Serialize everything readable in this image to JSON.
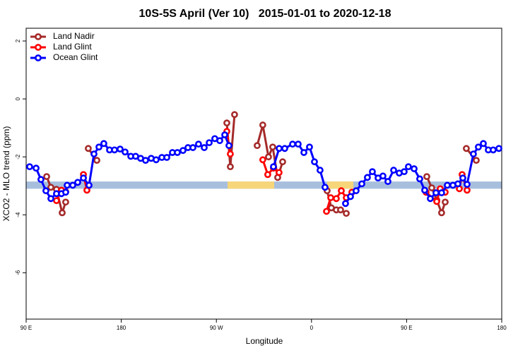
{
  "chart_data": {
    "type": "line",
    "title": "10S-5S April (Ver 10)   2015-01-01 to 2020-12-18",
    "x_label": "Longitude",
    "y_label": "XCO2 - MLO trend (ppm)",
    "xlim": [
      90,
      540
    ],
    "xticks": [
      {
        "value": 90,
        "label": "90 E"
      },
      180,
      {
        "value": 270,
        "label": "90 W"
      },
      {
        "value": 360,
        "label": "0"
      },
      {
        "value": 450,
        "label": "90 E"
      },
      {
        "value": 540,
        "label": "180"
      }
    ],
    "ylim": [
      -7.6,
      2.44
    ],
    "yticks": [
      2,
      0,
      -2,
      -4,
      -6
    ],
    "legend": "top-left",
    "band": {
      "ylim": [
        -3.1,
        -2.85
      ],
      "color": "#a7bfdd",
      "highlight_color": "#f7d67a",
      "highlight_x": [
        [
          280.6,
          324.7
        ],
        [
          374.8,
          399.6
        ]
      ]
    },
    "series": [
      {
        "name": "Land Nadir",
        "color": "#a52a2a",
        "x": [
          109.4,
          113.4,
          118.7,
          124.1,
          127.4,
          null,
          148.8,
          156.9,
          null,
          279.9,
          283.2,
          287.2,
          null,
          308.6,
          313.9,
          319.3,
          323.3,
          328.0,
          332.7,
          null,
          374.8,
          378.8,
          383.5,
          387.5,
          392.9,
          null,
          469.1,
          473.8,
          478.5,
          483.1,
          486.5,
          null,
          506.5,
          515.9
        ],
        "values": [
          -2.68,
          -3.05,
          -3.12,
          -3.93,
          -3.56,
          null,
          -1.71,
          -2.12,
          null,
          -0.83,
          -2.34,
          -0.54,
          null,
          -1.61,
          -0.9,
          -2.0,
          -1.66,
          -2.71,
          -2.17,
          null,
          -3.17,
          -3.76,
          -3.83,
          -3.83,
          -3.95,
          null,
          -2.68,
          -3.07,
          -3.49,
          -3.93,
          -3.56,
          null,
          -1.71,
          -2.12
        ]
      },
      {
        "name": "Land Glint",
        "color": "#ff0000",
        "x": [
          118.7,
          123.4,
          127.4,
          null,
          144.2,
          147.5,
          null,
          279.9,
          283.2,
          null,
          313.9,
          318.6,
          324.0,
          329.3,
          null,
          374.2,
          378.2,
          383.5,
          388.2,
          392.9,
          398.2,
          null,
          468.4,
          478.5,
          481.8,
          486.5,
          null,
          499.9,
          502.5,
          507.2
        ],
        "values": [
          -3.51,
          -3.15,
          -3.2,
          null,
          -2.61,
          -3.15,
          null,
          -1.12,
          -1.9,
          null,
          -2.1,
          -2.61,
          -2.39,
          -2.54,
          null,
          -3.88,
          -3.41,
          -3.44,
          -3.17,
          -3.41,
          -3.22,
          null,
          -3.22,
          -3.54,
          -3.1,
          -3.22,
          null,
          -3.1,
          -2.61,
          -3.15
        ]
      },
      {
        "name": "Ocean Glint",
        "color": "#0000ff",
        "x": [
          93.3,
          99.4,
          104.0,
          108.7,
          113.4,
          118.7,
          123.4,
          127.4,
          128.8,
          134.1,
          138.8,
          144.2,
          149.5,
          154.2,
          158.9,
          163.5,
          168.9,
          173.6,
          178.9,
          183.6,
          189.0,
          193.6,
          198.3,
          203.0,
          208.3,
          213.0,
          218.4,
          223.1,
          228.4,
          233.1,
          238.4,
          243.1,
          247.8,
          253.1,
          258.5,
          263.2,
          268.5,
          273.2,
          277.9,
          281.9,
          null,
          324.0,
          329.4,
          334.7,
          342.1,
          347.4,
          352.8,
          358.1,
          362.8,
          368.1,
          372.8,
          null,
          392.2,
          396.9,
          402.2,
          407.6,
          412.9,
          417.6,
          423.0,
          427.6,
          432.3,
          437.7,
          443.0,
          447.7,
          451.7,
          457.1,
          462.4,
          467.1,
          472.4,
          477.8,
          483.1,
          488.5,
          493.8,
          498.5,
          503.2,
          507.2,
          513.2,
          517.9,
          522.6,
          527.3,
          531.9,
          537.3
        ],
        "values": [
          -2.34,
          -2.39,
          -2.78,
          -3.17,
          -3.44,
          -3.27,
          -3.27,
          -3.22,
          -2.98,
          -2.98,
          -2.88,
          -2.73,
          -2.98,
          -1.9,
          -1.66,
          -1.54,
          -1.76,
          -1.76,
          -1.73,
          -1.83,
          -1.98,
          -1.98,
          -2.05,
          -2.12,
          -2.05,
          -2.1,
          -2.02,
          -2.02,
          -1.85,
          -1.85,
          -1.78,
          -1.68,
          -1.68,
          -1.56,
          -1.68,
          -1.51,
          -1.37,
          -1.44,
          -1.24,
          -1.61,
          null,
          -2.34,
          -1.71,
          -1.71,
          -1.56,
          -1.56,
          -1.85,
          -1.66,
          -2.17,
          -2.46,
          -3.05,
          null,
          -3.61,
          -3.37,
          -3.17,
          -2.93,
          -2.71,
          -2.51,
          -2.73,
          -2.66,
          -2.85,
          -2.46,
          -2.56,
          -2.51,
          -2.34,
          -2.41,
          -2.76,
          -3.15,
          -3.44,
          -3.24,
          -3.24,
          -2.98,
          -2.98,
          -2.93,
          -2.73,
          -2.95,
          -1.9,
          -1.66,
          -1.54,
          -1.76,
          -1.76,
          -1.71
        ]
      }
    ]
  }
}
